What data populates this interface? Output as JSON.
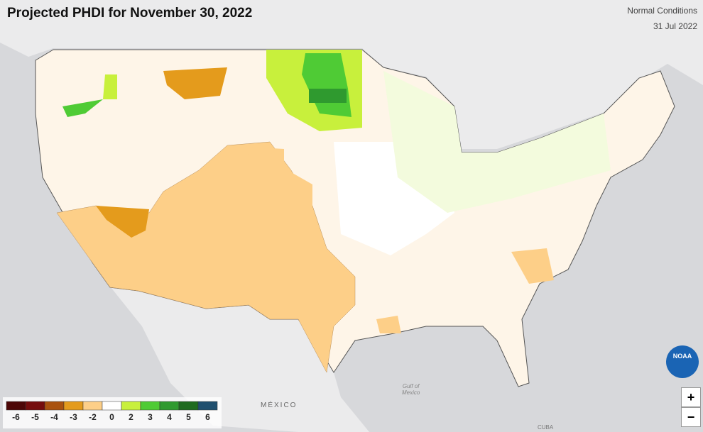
{
  "header": {
    "title": "Projected PHDI for November 30, 2022",
    "subtitle": "Normal Conditions",
    "date": "31 Jul 2022"
  },
  "legend": {
    "items": [
      {
        "label": -6,
        "color": "#4d0707"
      },
      {
        "label": -5,
        "color": "#750d0d"
      },
      {
        "label": -4,
        "color": "#a9520f"
      },
      {
        "label": -3,
        "color": "#e49b1c"
      },
      {
        "label": -2,
        "color": "#fdcf88"
      },
      {
        "label": 0,
        "color": "#ffffff"
      },
      {
        "label": 2,
        "color": "#c8f03c"
      },
      {
        "label": 3,
        "color": "#4fcb35"
      },
      {
        "label": 4,
        "color": "#2f9a2f"
      },
      {
        "label": 5,
        "color": "#1f6b1f"
      },
      {
        "label": 6,
        "color": "#1f4f6e"
      }
    ]
  },
  "map_labels": {
    "country": "MÉXICO",
    "gulf": [
      "Gulf of",
      "Mexico"
    ],
    "island": "CUBA"
  },
  "controls": {
    "zoom_in": "+",
    "zoom_out": "−",
    "logo": "NOAA"
  }
}
